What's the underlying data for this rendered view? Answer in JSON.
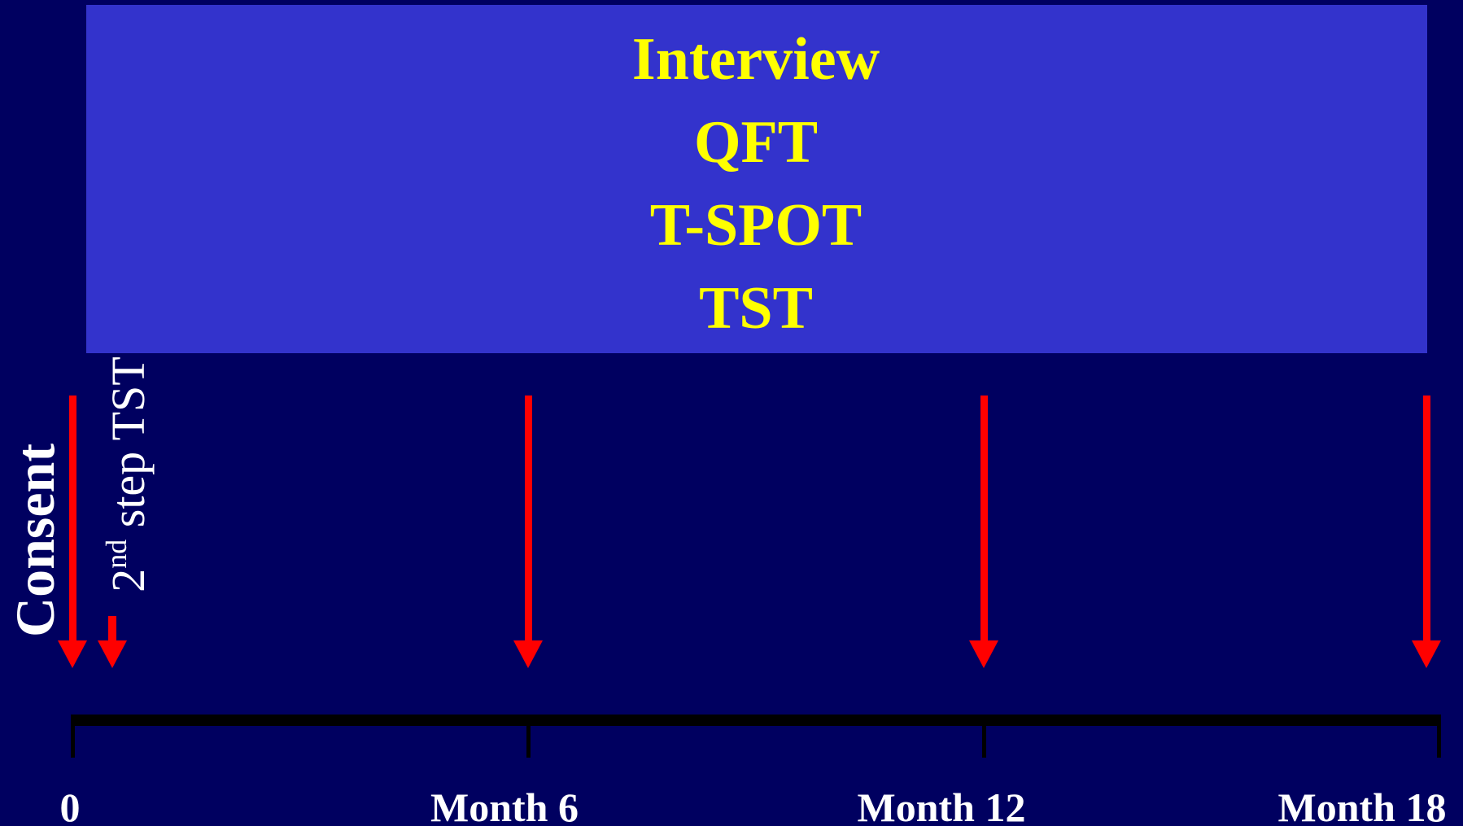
{
  "box": {
    "lines": [
      "Interview",
      "QFT",
      "T-SPOT",
      "TST"
    ]
  },
  "labels": {
    "consent": "Consent",
    "second_step": {
      "ordinal": "2",
      "suffix": "nd",
      "text": " step TST"
    }
  },
  "timeline": [
    "0",
    "Month 6",
    "Month 12",
    "Month 18"
  ]
}
